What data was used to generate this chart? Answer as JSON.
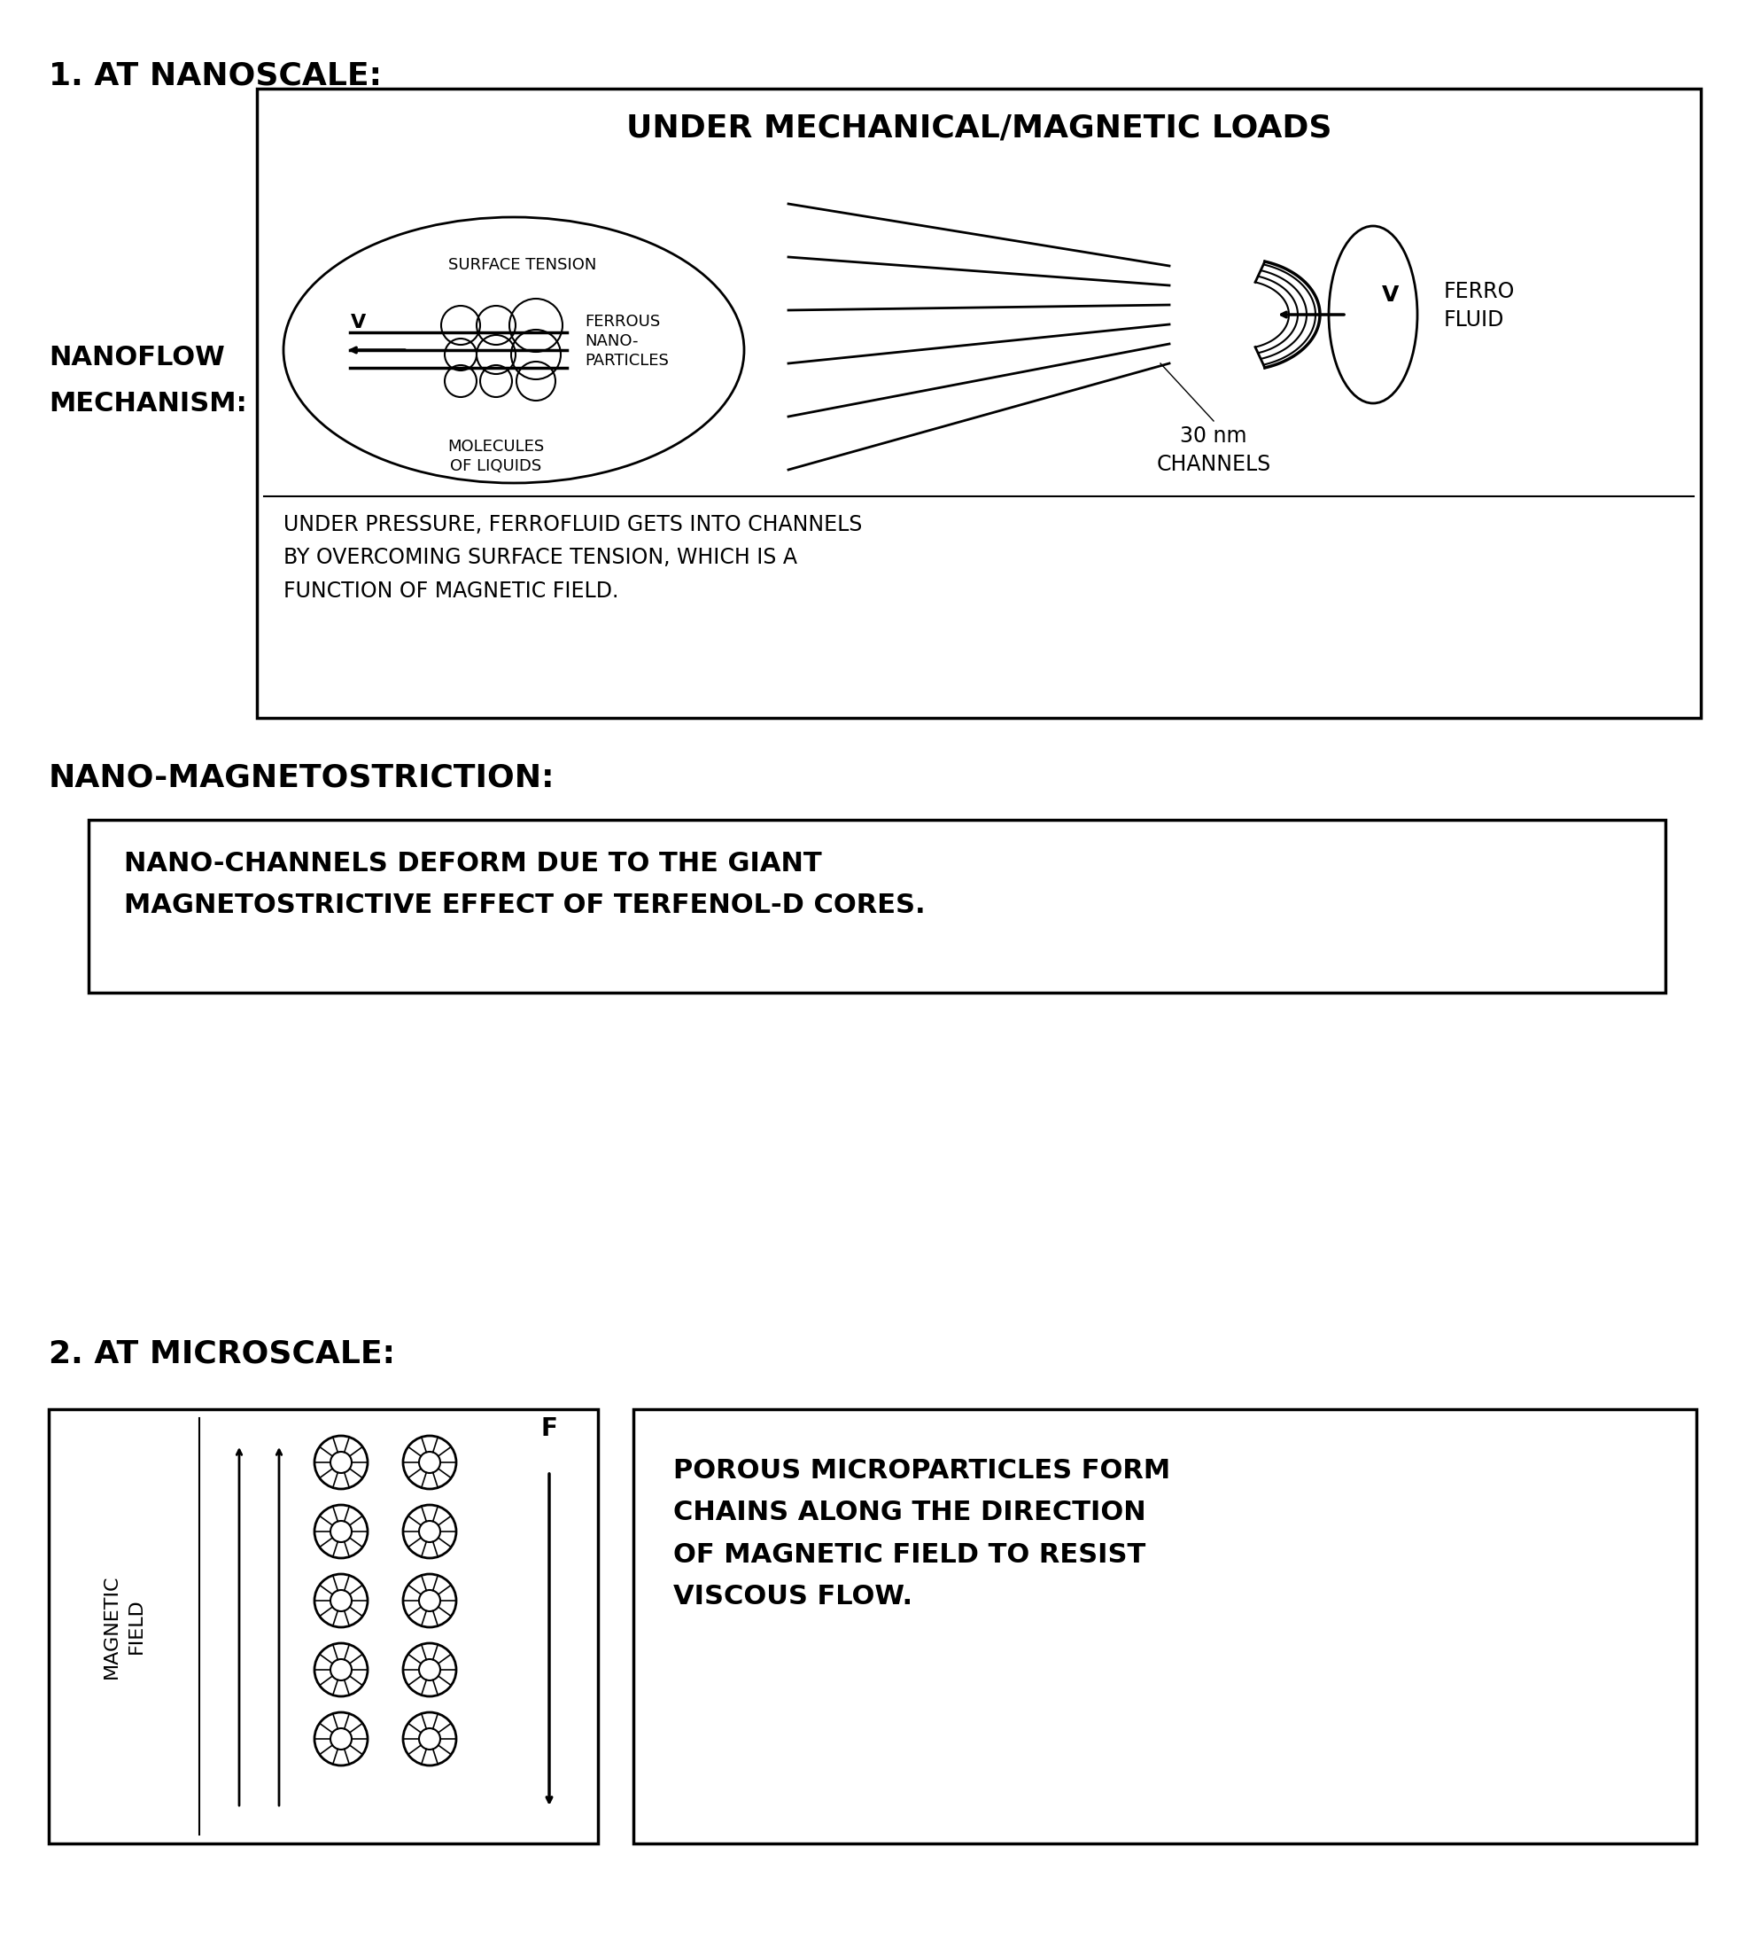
{
  "bg_color": "#ffffff",
  "text_color": "#000000",
  "section1_label": "1. AT NANOSCALE:",
  "nanoflow_label": "NANOFLOW\nMECHANISM:",
  "nanoscale_box_title": "UNDER MECHANICAL/MAGNETIC LOADS",
  "nanoscale_caption": "UNDER PRESSURE, FERROFLUID GETS INTO CHANNELS\nBY OVERCOMING SURFACE TENSION, WHICH IS A\nFUNCTION OF MAGNETIC FIELD.",
  "nanomag_label": "NANO-MAGNETOSTRICTION:",
  "nanomag_box_text": "NANO-CHANNELS DEFORM DUE TO THE GIANT\nMAGNETOSTRICTIVE EFFECT OF TERFENOL-D CORES.",
  "section2_label": "2. AT MICROSCALE:",
  "micro_field_label": "MAGNETIC\nFIELD",
  "micro_F_label": "F",
  "micro_box_text": "POROUS MICROPARTICLES FORM\nCHAINS ALONG THE DIRECTION\nOF MAGNETIC FIELD TO RESIST\nVISCOUS FLOW.",
  "surface_tension_label": "SURFACE TENSION",
  "ferrous_label": "FERROUS\nNANO-\nPARTICLES",
  "molecules_label": "MOLECULES\nOF LIQUIDS",
  "channels_label": "30 nm\nCHANNELS",
  "ferro_fluid_label": "FERRO\nFLUID",
  "v_label": "V",
  "font_family": "DejaVu Sans"
}
